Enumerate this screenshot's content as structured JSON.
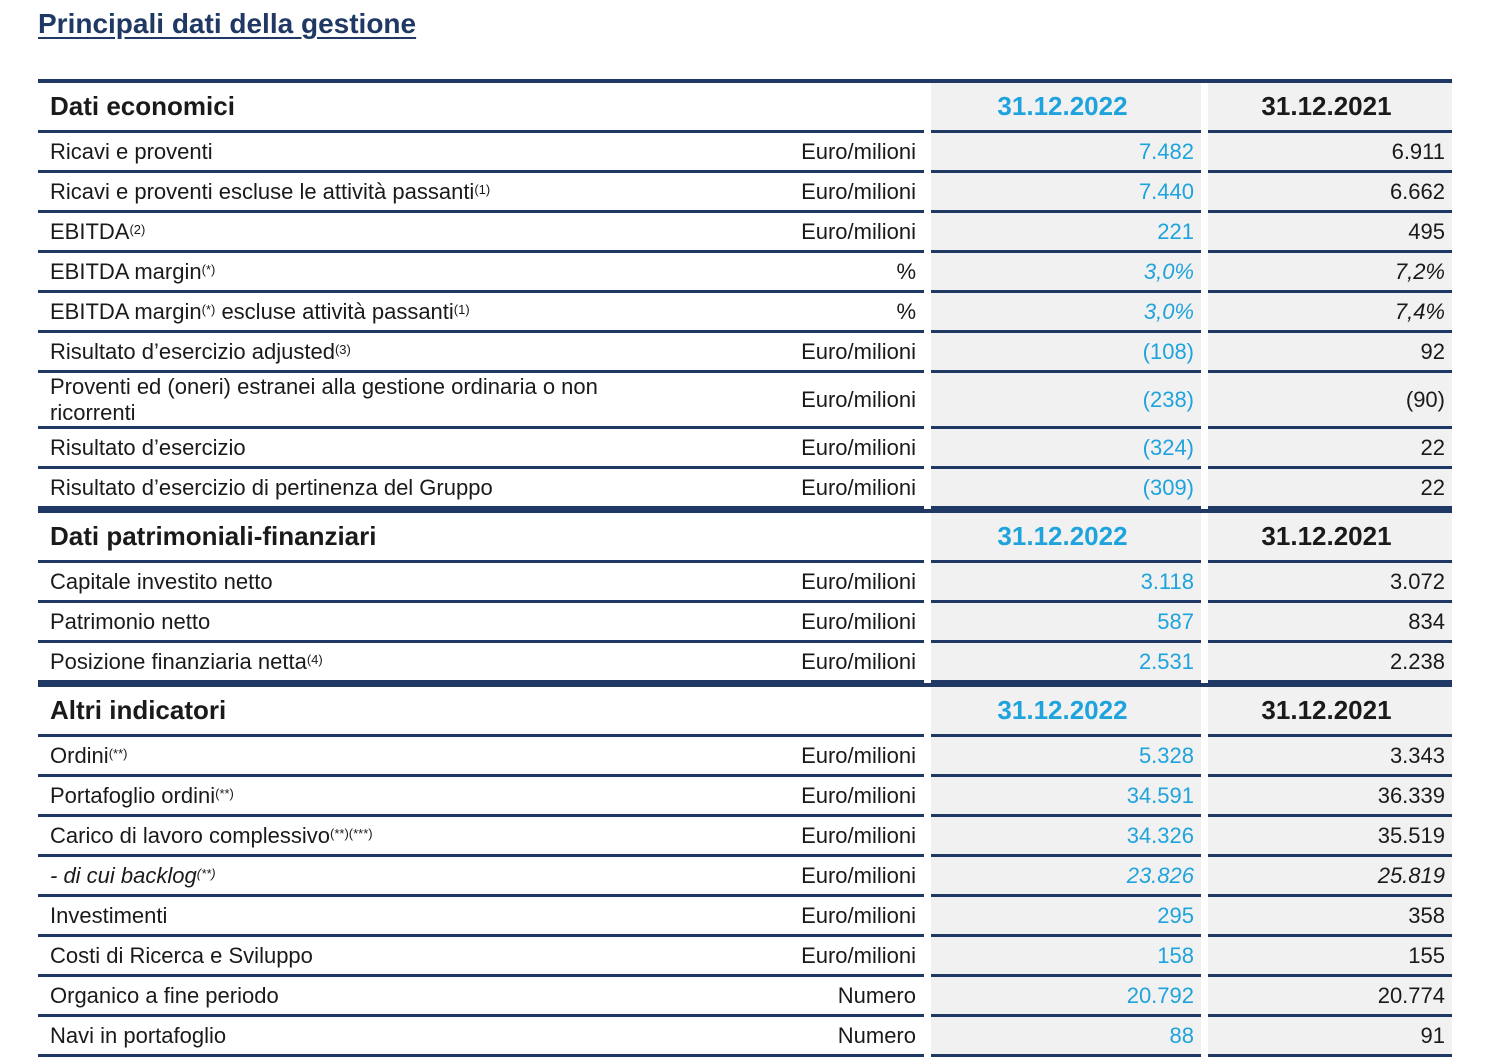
{
  "title": "Principali dati della gestione",
  "sections": [
    {
      "header": "Dati economici",
      "col1": "31.12.2022",
      "col2": "31.12.2021",
      "rows": [
        {
          "label": [
            {
              "text": "Ricavi e proventi"
            }
          ],
          "unit": "Euro/milioni",
          "v1": "7.482",
          "v2": "6.911"
        },
        {
          "label": [
            {
              "text": "Ricavi e proventi escluse le attività passanti"
            },
            {
              "text": "(1)",
              "sup": true
            }
          ],
          "unit": "Euro/milioni",
          "v1": "7.440",
          "v2": "6.662"
        },
        {
          "label": [
            {
              "text": "EBITDA"
            },
            {
              "text": "(2)",
              "sup": true
            }
          ],
          "unit": "Euro/milioni",
          "v1": "221",
          "v2": "495"
        },
        {
          "label": [
            {
              "text": "EBITDA margin"
            },
            {
              "text": "(*)",
              "sup": true
            }
          ],
          "unit": "%",
          "v1": "3,0%",
          "v2": "7,2%",
          "italic_values": true
        },
        {
          "label": [
            {
              "text": "EBITDA margin"
            },
            {
              "text": "(*)",
              "sup": true
            },
            {
              "text": " escluse attività passanti"
            },
            {
              "text": "(1)",
              "sup": true
            }
          ],
          "unit": "%",
          "v1": "3,0%",
          "v2": "7,4%",
          "italic_values": true
        },
        {
          "label": [
            {
              "text": "Risultato d’esercizio adjusted"
            },
            {
              "text": "(3)",
              "sup": true
            }
          ],
          "unit": "Euro/milioni",
          "v1": "(108)",
          "v2": "92"
        },
        {
          "label": [
            {
              "text": "Proventi ed (oneri) estranei alla gestione ordinaria o non ricorrenti"
            }
          ],
          "unit": "Euro/milioni",
          "v1": "(238)",
          "v2": "(90)",
          "tall": true
        },
        {
          "label": [
            {
              "text": "Risultato d’esercizio"
            }
          ],
          "unit": "Euro/milioni",
          "v1": "(324)",
          "v2": "22"
        },
        {
          "label": [
            {
              "text": "Risultato d’esercizio di pertinenza del Gruppo"
            }
          ],
          "unit": "Euro/milioni",
          "v1": "(309)",
          "v2": "22"
        }
      ]
    },
    {
      "header": "Dati patrimoniali-finanziari",
      "col1": "31.12.2022",
      "col2": "31.12.2021",
      "rows": [
        {
          "label": [
            {
              "text": "Capitale investito netto"
            }
          ],
          "unit": "Euro/milioni",
          "v1": "3.118",
          "v2": "3.072"
        },
        {
          "label": [
            {
              "text": "Patrimonio netto"
            }
          ],
          "unit": "Euro/milioni",
          "v1": "587",
          "v2": "834"
        },
        {
          "label": [
            {
              "text": "Posizione finanziaria netta"
            },
            {
              "text": "(4)",
              "sup": true
            }
          ],
          "unit": "Euro/milioni",
          "v1": "2.531",
          "v2": "2.238"
        }
      ]
    },
    {
      "header": "Altri indicatori",
      "col1": "31.12.2022",
      "col2": "31.12.2021",
      "rows": [
        {
          "label": [
            {
              "text": "Ordini"
            },
            {
              "text": "(**)",
              "sup": true
            }
          ],
          "unit": "Euro/milioni",
          "v1": "5.328",
          "v2": "3.343"
        },
        {
          "label": [
            {
              "text": "Portafoglio ordini"
            },
            {
              "text": "(**)",
              "sup": true
            }
          ],
          "unit": "Euro/milioni",
          "v1": "34.591",
          "v2": "36.339"
        },
        {
          "label": [
            {
              "text": "Carico di lavoro complessivo"
            },
            {
              "text": "(**)(***)",
              "sup": true
            }
          ],
          "unit": "Euro/milioni",
          "v1": "34.326",
          "v2": "35.519"
        },
        {
          "label": [
            {
              "text": "- di cui backlog"
            },
            {
              "text": "(**)",
              "sup": true
            }
          ],
          "unit": "Euro/milioni",
          "v1": "23.826",
          "v2": "25.819",
          "italic": true
        },
        {
          "label": [
            {
              "text": "Investimenti"
            }
          ],
          "unit": "Euro/milioni",
          "v1": "295",
          "v2": "358"
        },
        {
          "label": [
            {
              "text": "Costi di Ricerca e Sviluppo"
            }
          ],
          "unit": "Euro/milioni",
          "v1": "158",
          "v2": "155"
        },
        {
          "label": [
            {
              "text": "Organico a fine periodo"
            }
          ],
          "unit": "Numero",
          "v1": "20.792",
          "v2": "20.774"
        },
        {
          "label": [
            {
              "text": "Navi in portafoglio"
            }
          ],
          "unit": "Numero",
          "v1": "88",
          "v2": "91"
        }
      ]
    }
  ]
}
